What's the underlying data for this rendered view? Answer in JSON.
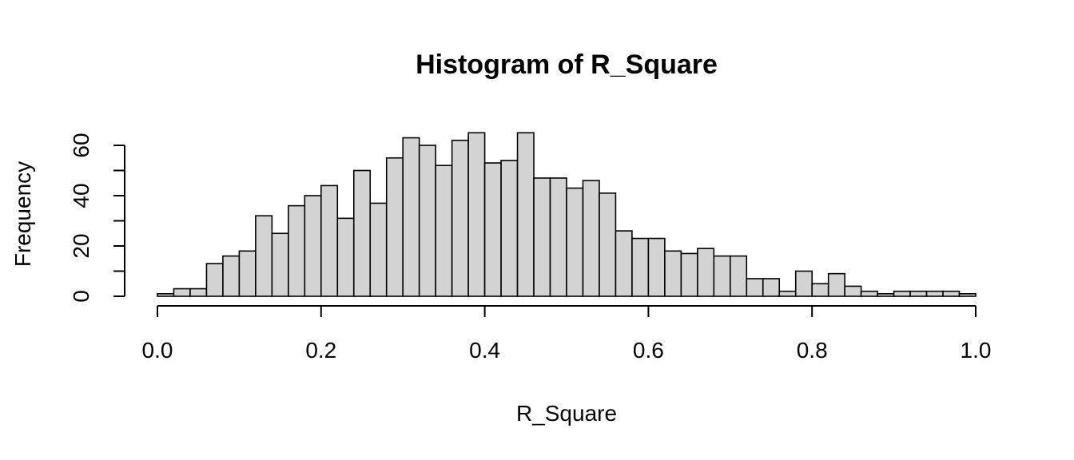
{
  "chart_data": {
    "type": "bar",
    "title": "Histogram of R_Square",
    "xlabel": "R_Square",
    "ylabel": "Frequency",
    "xlim": [
      0,
      1
    ],
    "ylim": [
      0,
      65
    ],
    "bin_width": 0.02,
    "x_ticks": [
      "0.0",
      "0.2",
      "0.4",
      "0.6",
      "0.8",
      "1.0"
    ],
    "y_ticks": [
      "0",
      "20",
      "40",
      "60"
    ],
    "bins": [
      0.0,
      0.02,
      0.04,
      0.06,
      0.08,
      0.1,
      0.12,
      0.14,
      0.16,
      0.18,
      0.2,
      0.22,
      0.24,
      0.26,
      0.28,
      0.3,
      0.32,
      0.34,
      0.36,
      0.38,
      0.4,
      0.42,
      0.44,
      0.46,
      0.48,
      0.5,
      0.52,
      0.54,
      0.56,
      0.58,
      0.6,
      0.62,
      0.64,
      0.66,
      0.68,
      0.7,
      0.72,
      0.74,
      0.76,
      0.78,
      0.8,
      0.82,
      0.84,
      0.86,
      0.88,
      0.9,
      0.92,
      0.94,
      0.96,
      0.98
    ],
    "values": [
      1,
      3,
      3,
      13,
      16,
      18,
      32,
      25,
      36,
      40,
      44,
      31,
      50,
      37,
      55,
      63,
      60,
      52,
      62,
      65,
      53,
      54,
      65,
      47,
      47,
      43,
      46,
      41,
      26,
      23,
      23,
      18,
      17,
      19,
      16,
      16,
      7,
      7,
      2,
      10,
      5,
      9,
      4,
      2,
      1,
      2,
      2,
      2,
      2,
      1
    ],
    "grid": false
  }
}
